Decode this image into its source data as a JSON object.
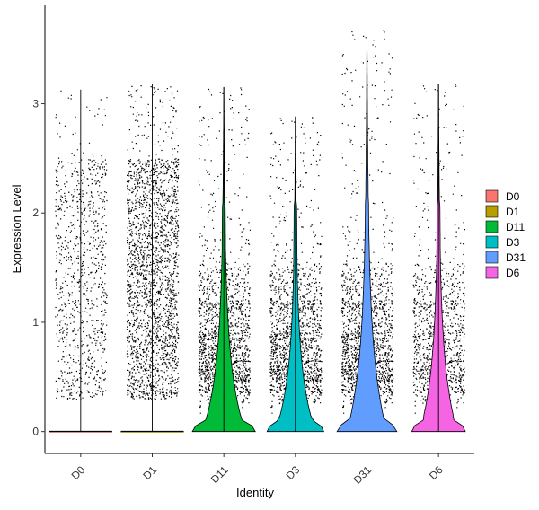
{
  "chart_data": {
    "type": "violin",
    "xlabel": "Identity",
    "ylabel": "Expression Level",
    "ylim": [
      -0.2,
      3.9
    ],
    "yticks": [
      0,
      1,
      2,
      3
    ],
    "categories": [
      "D0",
      "D1",
      "D11",
      "D3",
      "D31",
      "D6"
    ],
    "series": [
      {
        "name": "D0",
        "color": "#F8766D",
        "max": 3.13,
        "spread": 0.0,
        "density": 0.0,
        "points": 900
      },
      {
        "name": "D1",
        "color": "#B79F00",
        "max": 3.18,
        "spread": 0.0,
        "density": 0.0,
        "points": 2200
      },
      {
        "name": "D11",
        "color": "#00BA38",
        "max": 3.15,
        "spread": 0.28,
        "density": 1.0,
        "points": 3200
      },
      {
        "name": "D3",
        "color": "#00BFC4",
        "max": 2.88,
        "spread": 0.3,
        "density": 0.9,
        "points": 1600
      },
      {
        "name": "D31",
        "color": "#619CFF",
        "max": 3.68,
        "spread": 0.32,
        "density": 0.95,
        "points": 4500
      },
      {
        "name": "D6",
        "color": "#F564E3",
        "max": 3.18,
        "spread": 0.27,
        "density": 0.85,
        "points": 1100
      }
    ],
    "legend": {
      "position": "right",
      "entries": [
        "D0",
        "D1",
        "D11",
        "D3",
        "D31",
        "D6"
      ]
    }
  }
}
